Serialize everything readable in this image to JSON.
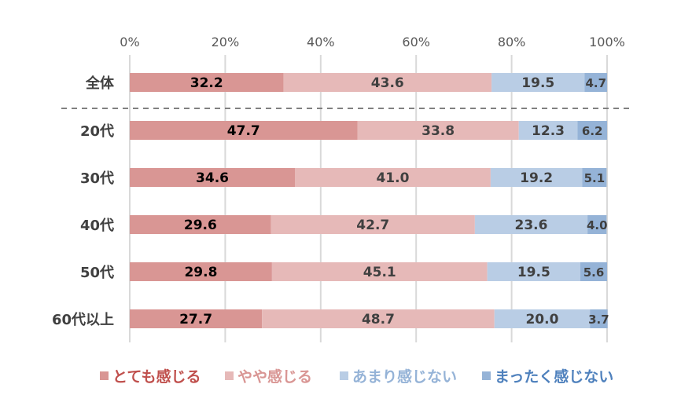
{
  "chart_data": {
    "type": "bar",
    "orientation": "horizontal",
    "stacked": "percent",
    "categories": [
      "全体",
      "20代",
      "30代",
      "40代",
      "50代",
      "60代以上"
    ],
    "series": [
      {
        "name": "とても感じる",
        "values": [
          32.2,
          47.7,
          34.6,
          29.6,
          29.8,
          27.7
        ],
        "color": "#d99694",
        "text_color": "#c0504d"
      },
      {
        "name": "やや感じる",
        "values": [
          43.6,
          33.8,
          41.0,
          42.7,
          45.1,
          48.7
        ],
        "color": "#e6b9b8",
        "text_color": "#d99694"
      },
      {
        "name": "あまり感じない",
        "values": [
          19.5,
          12.3,
          19.2,
          23.6,
          19.5,
          20.0
        ],
        "color": "#b9cde5",
        "text_color": "#95b3d7"
      },
      {
        "name": "まったく感じない",
        "values": [
          4.7,
          6.2,
          5.1,
          4.0,
          5.6,
          3.7
        ],
        "color": "#95b3d7",
        "text_color": "#4f81bd"
      }
    ],
    "xticks": [
      "0%",
      "20%",
      "40%",
      "60%",
      "80%",
      "100%"
    ],
    "xlim": [
      0,
      100
    ],
    "xaxis_position": "top",
    "grid": true,
    "legend": "bottom",
    "separator_after_category": "全体"
  }
}
